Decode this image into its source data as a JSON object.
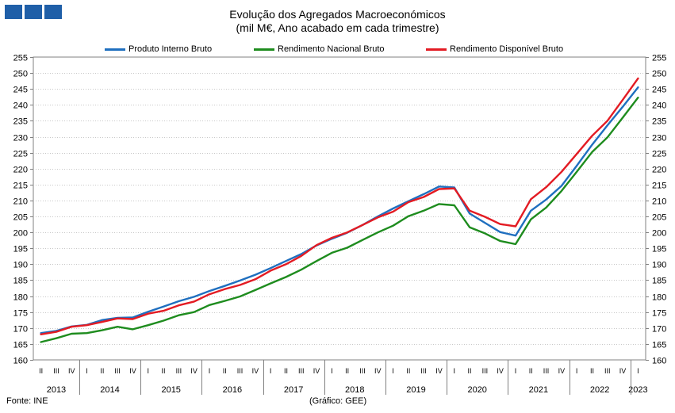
{
  "header": {
    "title": "Evolução dos Agregados Macroeconómicos",
    "subtitle": "(mil M€, Ano acabado em cada trimestre)"
  },
  "footer": {
    "source": "Fonte: INE",
    "credit": "(Gráfico: GEE)"
  },
  "colors": {
    "pib": "#1f6fbf",
    "rnb": "#1e8c1e",
    "rdb": "#e31b23"
  },
  "chart_data": {
    "type": "line",
    "title": "Evolução dos Agregados Macroeconómicos",
    "subtitle": "(mil M€, Ano acabado em cada trimestre)",
    "ylim": [
      160,
      255
    ],
    "ytick_step": 5,
    "grid": true,
    "legend_position": "top",
    "quarters": [
      "II",
      "III",
      "IV",
      "I",
      "II",
      "III",
      "IV",
      "I",
      "II",
      "III",
      "IV",
      "I",
      "II",
      "III",
      "IV",
      "I",
      "II",
      "III",
      "IV",
      "I",
      "II",
      "III",
      "IV",
      "I",
      "II",
      "III",
      "IV",
      "I",
      "II",
      "III",
      "IV",
      "I",
      "II",
      "III",
      "IV",
      "I",
      "II",
      "III",
      "IV",
      "I"
    ],
    "years": [
      {
        "label": "2013",
        "start": 0,
        "count": 3
      },
      {
        "label": "2014",
        "start": 3,
        "count": 4
      },
      {
        "label": "2015",
        "start": 7,
        "count": 4
      },
      {
        "label": "2016",
        "start": 11,
        "count": 4
      },
      {
        "label": "2017",
        "start": 15,
        "count": 4
      },
      {
        "label": "2018",
        "start": 19,
        "count": 4
      },
      {
        "label": "2019",
        "start": 23,
        "count": 4
      },
      {
        "label": "2020",
        "start": 27,
        "count": 4
      },
      {
        "label": "2021",
        "start": 31,
        "count": 4
      },
      {
        "label": "2022",
        "start": 35,
        "count": 4
      },
      {
        "label": "2023",
        "start": 39,
        "count": 1
      }
    ],
    "series": [
      {
        "name": "Produto Interno Bruto",
        "key": "pib",
        "values": [
          168.4,
          169.1,
          170.5,
          171.0,
          172.5,
          173.2,
          173.3,
          175.1,
          176.7,
          178.4,
          179.8,
          181.6,
          183.2,
          184.9,
          186.7,
          188.8,
          191.0,
          193.2,
          195.9,
          198.0,
          199.9,
          202.3,
          205.0,
          207.5,
          209.8,
          212.0,
          214.4,
          214.1,
          205.9,
          203.0,
          200.1,
          199.0,
          206.8,
          210.3,
          214.6,
          220.9,
          227.5,
          233.6,
          239.4,
          245.5
        ]
      },
      {
        "name": "Rendimento Nacional Bruto",
        "key": "rnb",
        "values": [
          165.6,
          166.8,
          168.2,
          168.4,
          169.3,
          170.4,
          169.6,
          170.9,
          172.3,
          174.0,
          175.0,
          177.2,
          178.5,
          179.9,
          181.9,
          184.0,
          186.0,
          188.3,
          191.0,
          193.6,
          195.2,
          197.6,
          200.0,
          202.1,
          205.1,
          206.8,
          208.9,
          208.5,
          201.6,
          199.7,
          197.3,
          196.3,
          204.1,
          207.8,
          213.0,
          219.0,
          225.2,
          229.8,
          236.0,
          242.3
        ]
      },
      {
        "name": "Rendimento Disponível Bruto",
        "key": "rdb",
        "values": [
          168.0,
          168.8,
          170.4,
          170.9,
          171.9,
          173.0,
          172.8,
          174.5,
          175.4,
          177.1,
          178.3,
          180.6,
          182.2,
          183.5,
          185.3,
          188.0,
          190.0,
          192.6,
          196.0,
          198.3,
          200.0,
          202.3,
          204.7,
          206.5,
          209.5,
          211.1,
          213.6,
          213.8,
          206.8,
          204.9,
          202.6,
          201.9,
          210.4,
          214.2,
          219.0,
          224.6,
          230.3,
          235.0,
          241.6,
          248.3
        ]
      }
    ]
  }
}
